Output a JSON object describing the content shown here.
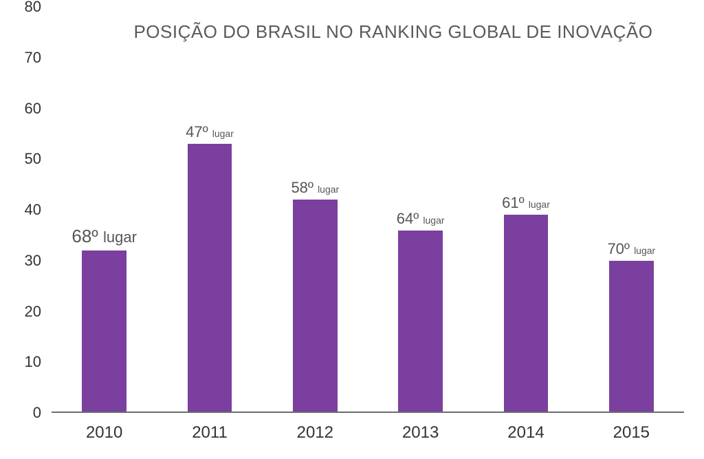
{
  "chart": {
    "type": "bar",
    "title": "POSIÇÃO DO BRASIL NO RANKING GLOBAL DE INOVAÇÃO",
    "title_fontsize": 26,
    "title_color": "#5a5a5a",
    "background_color": "#ffffff",
    "axis_color": "#6b6b6b",
    "tick_label_color": "#333333",
    "tick_fontsize": 22,
    "x_tick_fontsize": 24,
    "bar_color": "#7b3fa0",
    "bar_label_color": "#555555",
    "bar_width_ratio": 0.42,
    "ylim": [
      0,
      80
    ],
    "ytick_step": 10,
    "y_ticks": [
      0,
      10,
      20,
      30,
      40,
      50,
      60,
      70,
      80
    ],
    "categories": [
      "2010",
      "2011",
      "2012",
      "2013",
      "2014",
      "2015"
    ],
    "values": [
      32,
      53,
      42,
      36,
      39,
      30
    ],
    "rank_labels": [
      "68º",
      "47º",
      "58º",
      "64º",
      "61º",
      "70º"
    ],
    "rank_suffix": "lugar",
    "label_emphasis_index": 0
  }
}
